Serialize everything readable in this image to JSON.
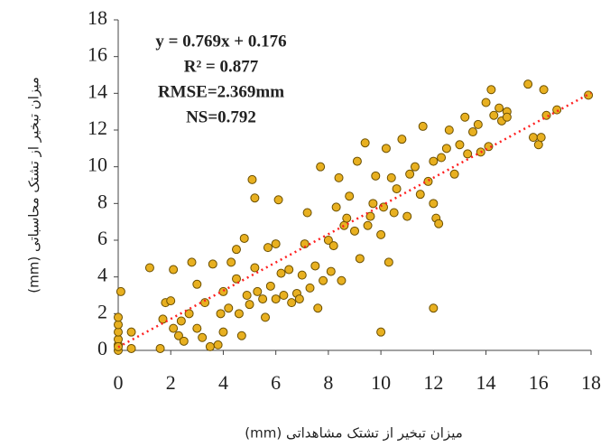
{
  "chart_data": {
    "type": "scatter",
    "annotations": [
      "y = 0.769x + 0.176",
      "R² = 0.877",
      "RMSE=2.369mm",
      "NS=0.792"
    ],
    "xlabel": "میزان تبخیر از تشتک مشاهداتی (mm)",
    "ylabel": "میزان تبخیر از تشتک محاسباتی (mm)",
    "xlim": [
      0,
      18
    ],
    "ylim": [
      0,
      18
    ],
    "xticks": [
      0,
      2,
      4,
      6,
      8,
      10,
      12,
      14,
      16,
      18
    ],
    "yticks": [
      0,
      2,
      4,
      6,
      8,
      10,
      12,
      14,
      16,
      18
    ],
    "trendline": {
      "slope": 0.769,
      "intercept": 0.176,
      "color": "#ff2020"
    },
    "series": [
      {
        "color": "#e8b020",
        "x": [
          0,
          0,
          0,
          0,
          0,
          0,
          0,
          0.1,
          0.5,
          0.5,
          1.2,
          1.6,
          1.8,
          1.7,
          2,
          2.1,
          2.1,
          2.3,
          2.4,
          2.5,
          2.7,
          2.8,
          3,
          3,
          3.2,
          3.3,
          3.5,
          3.6,
          3.8,
          3.9,
          4,
          4,
          4.2,
          4.3,
          4.5,
          4.5,
          4.6,
          4.7,
          4.8,
          4.9,
          5,
          5.1,
          5.2,
          5.2,
          5.3,
          5.5,
          5.6,
          5.7,
          5.8,
          6,
          6,
          6.1,
          6.2,
          6.3,
          6.5,
          6.6,
          6.8,
          6.9,
          7,
          7.1,
          7.2,
          7.3,
          7.5,
          7.6,
          7.7,
          7.8,
          8,
          8.1,
          8.2,
          8.3,
          8.4,
          8.5,
          8.6,
          8.7,
          8.8,
          9,
          9.1,
          9.2,
          9.4,
          9.5,
          9.6,
          9.7,
          9.8,
          10,
          10,
          10.1,
          10.2,
          10.3,
          10.4,
          10.5,
          10.6,
          10.8,
          11,
          11.1,
          11.3,
          11.5,
          11.6,
          11.8,
          12,
          12,
          12,
          12.1,
          12.2,
          12.3,
          12.5,
          12.6,
          12.8,
          13,
          13.2,
          13.3,
          13.5,
          13.7,
          14,
          14.1,
          14.2,
          14.3,
          14.5,
          14.6,
          14.8,
          15.6,
          15.8,
          16,
          16.1,
          16.2,
          16.3,
          16.7,
          17.9,
          14.8,
          13.8
        ],
        "values": [
          0,
          0.3,
          0.6,
          1,
          1.4,
          1.8,
          0.2,
          3.2,
          1,
          0.1,
          4.5,
          0.1,
          2.6,
          1.7,
          2.7,
          4.4,
          1.2,
          0.8,
          1.6,
          0.5,
          2,
          4.8,
          3.6,
          1.2,
          0.7,
          2.6,
          0.2,
          4.7,
          0.3,
          2,
          3.2,
          1,
          2.3,
          4.8,
          3.9,
          5.5,
          2,
          0.8,
          6.1,
          3,
          2.5,
          9.3,
          8.3,
          4.5,
          3.2,
          2.8,
          1.8,
          5.6,
          3.5,
          5.8,
          2.8,
          8.2,
          4.2,
          3,
          4.4,
          2.6,
          3.1,
          2.8,
          4.1,
          5.8,
          7.5,
          3.4,
          4.6,
          2.3,
          10,
          3.8,
          6,
          4.3,
          5.7,
          7.8,
          9.4,
          3.8,
          6.8,
          7.2,
          8.4,
          6.5,
          10.3,
          5,
          11.3,
          6.8,
          7.3,
          8,
          9.5,
          1,
          6.3,
          7.8,
          11,
          4.8,
          9.4,
          7.5,
          8.8,
          11.5,
          7.3,
          9.6,
          10,
          8.5,
          12.2,
          9.2,
          2.3,
          8,
          10.3,
          7.2,
          6.9,
          10.5,
          11,
          12,
          9.6,
          11.2,
          12.7,
          10.7,
          11.9,
          12.3,
          13.5,
          11.1,
          14.2,
          12.8,
          13.2,
          12.5,
          13,
          14.5,
          11.6,
          11.2,
          11.6,
          14.2,
          12.8,
          13.1,
          13.9,
          12.7,
          10.8
        ]
      }
    ]
  }
}
